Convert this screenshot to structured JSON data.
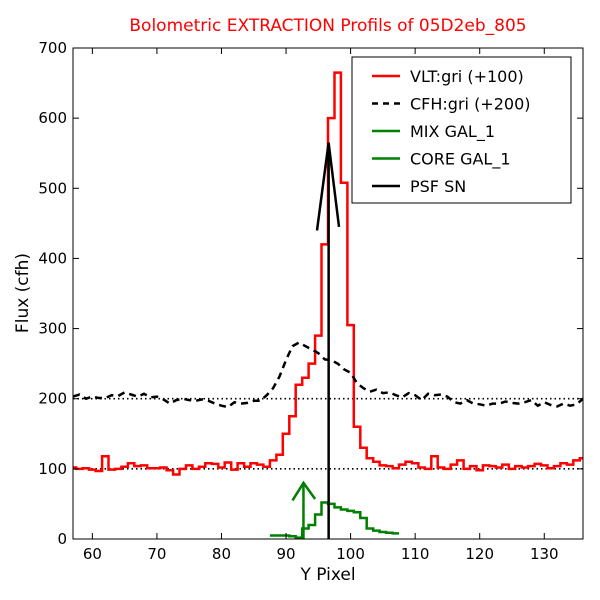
{
  "chart_data": {
    "type": "line",
    "title": "Bolometric EXTRACTION Profils of 05D2eb_805",
    "title_color": "#ff0000",
    "xlabel": "Y Pixel",
    "ylabel": "Flux (cfh)",
    "xlim": [
      57,
      136
    ],
    "ylim": [
      0,
      700
    ],
    "xticks": [
      60,
      70,
      80,
      90,
      100,
      110,
      120,
      130
    ],
    "yticks": [
      0,
      100,
      200,
      300,
      400,
      500,
      600,
      700
    ],
    "xtick_labels": [
      "60",
      "70",
      "80",
      "90",
      "100",
      "110",
      "120",
      "130"
    ],
    "ytick_labels": [
      "0",
      "100",
      "200",
      "300",
      "400",
      "500",
      "600",
      "700"
    ],
    "legend_position": "top-right",
    "reference_lines": [
      {
        "y": 100,
        "style": "dotted",
        "color": "#000000"
      },
      {
        "y": 200,
        "style": "dotted",
        "color": "#000000"
      }
    ],
    "series": [
      {
        "name": "VLT:gri (+100)",
        "color": "#ff0000",
        "style": "steps",
        "dash": "solid",
        "x": [
          57,
          58,
          59,
          60,
          61,
          62,
          63,
          64,
          65,
          66,
          67,
          68,
          69,
          70,
          71,
          72,
          73,
          74,
          75,
          76,
          77,
          78,
          79,
          80,
          81,
          82,
          83,
          84,
          85,
          86,
          87,
          88,
          89,
          90,
          91,
          92,
          93,
          94,
          95,
          96,
          97,
          98,
          99,
          100,
          101,
          102,
          103,
          104,
          105,
          106,
          107,
          108,
          109,
          110,
          111,
          112,
          113,
          114,
          115,
          116,
          117,
          118,
          119,
          120,
          121,
          122,
          123,
          124,
          125,
          126,
          127,
          128,
          129,
          130,
          131,
          132,
          133,
          134,
          135,
          136
        ],
        "y": [
          102,
          100,
          101,
          99,
          97,
          118,
          99,
          100,
          103,
          108,
          104,
          105,
          101,
          101,
          102,
          98,
          92,
          100,
          105,
          100,
          103,
          108,
          107,
          102,
          109,
          99,
          108,
          103,
          108,
          106,
          103,
          112,
          120,
          150,
          175,
          220,
          230,
          250,
          290,
          420,
          600,
          665,
          508,
          305,
          160,
          130,
          115,
          110,
          105,
          104,
          101,
          106,
          110,
          108,
          102,
          100,
          118,
          102,
          100,
          106,
          112,
          100,
          104,
          98,
          105,
          104,
          102,
          106,
          100,
          104,
          102,
          104,
          107,
          105,
          101,
          104,
          108,
          106,
          112,
          115
        ]
      },
      {
        "name": "CFH:gri (+200)",
        "color": "#000000",
        "style": "line",
        "dash": "dashed",
        "x": [
          57,
          58,
          59,
          60,
          61,
          62,
          63,
          64,
          65,
          66,
          67,
          68,
          69,
          70,
          71,
          72,
          73,
          74,
          75,
          76,
          77,
          78,
          79,
          80,
          81,
          82,
          83,
          84,
          85,
          86,
          87,
          88,
          89,
          90,
          91,
          92,
          93,
          94,
          95,
          96,
          97,
          98,
          99,
          100,
          101,
          102,
          103,
          104,
          105,
          106,
          107,
          108,
          109,
          110,
          111,
          112,
          113,
          114,
          115,
          116,
          117,
          118,
          119,
          120,
          121,
          122,
          123,
          124,
          125,
          126,
          127,
          128,
          129,
          130,
          131,
          132,
          133,
          134,
          135,
          136
        ],
        "y": [
          203,
          206,
          200,
          203,
          201,
          201,
          205,
          204,
          209,
          206,
          203,
          207,
          202,
          203,
          199,
          193,
          198,
          200,
          198,
          197,
          199,
          197,
          193,
          190,
          188,
          195,
          193,
          194,
          197,
          197,
          205,
          215,
          232,
          255,
          275,
          280,
          275,
          270,
          265,
          256,
          255,
          250,
          242,
          237,
          222,
          215,
          210,
          213,
          208,
          209,
          205,
          202,
          208,
          205,
          198,
          207,
          205,
          206,
          203,
          195,
          193,
          198,
          193,
          192,
          190,
          193,
          193,
          196,
          194,
          193,
          195,
          198,
          190,
          195,
          191,
          189,
          193,
          190,
          192,
          200
        ]
      },
      {
        "name": "MIX GAL_1",
        "color": "#008000",
        "style": "line",
        "dash": "solid",
        "x": [
          91,
          92.7,
          94.5
        ],
        "y": [
          55,
          80,
          57
        ]
      },
      {
        "name": "CORE GAL_1",
        "color": "#008000",
        "style": "steps",
        "dash": "solid",
        "x": [
          88,
          89,
          90,
          91,
          92,
          93,
          94,
          95,
          96,
          97,
          98,
          99,
          100,
          101,
          102,
          103,
          104,
          105,
          106,
          107
        ],
        "y": [
          5,
          5,
          5,
          4,
          2,
          15,
          20,
          35,
          52,
          50,
          45,
          42,
          40,
          38,
          30,
          15,
          12,
          10,
          9,
          8
        ]
      },
      {
        "name": "PSF SN",
        "color": "#000000",
        "style": "line",
        "dash": "solid",
        "x": [
          94.8,
          96.6,
          98.2
        ],
        "y": [
          440,
          565,
          445
        ]
      }
    ],
    "vertical_lines": [
      {
        "x": 92.7,
        "y_from": 0,
        "y_to": 80,
        "color": "#008000"
      },
      {
        "x": 96.6,
        "y_from": 0,
        "y_to": 565,
        "color": "#000000"
      }
    ]
  }
}
